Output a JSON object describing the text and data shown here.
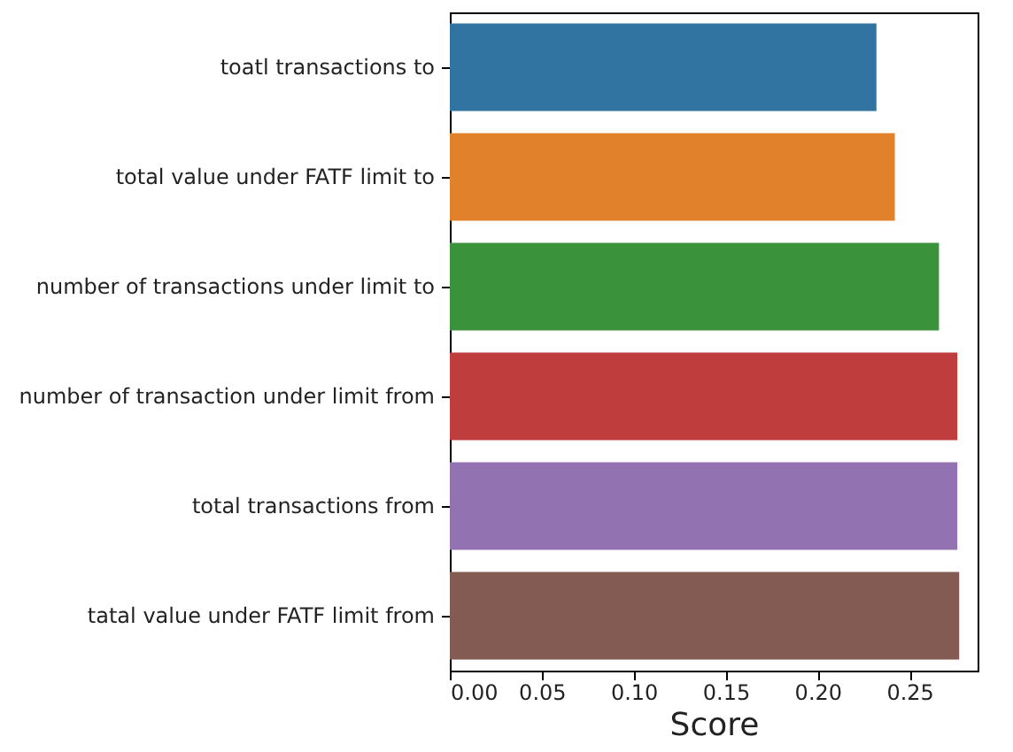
{
  "chart_data": {
    "type": "bar",
    "orientation": "horizontal",
    "xlabel": "Score",
    "categories": [
      "toatl transactions to",
      "total value under FATF limit to",
      "number of transactions under limit to",
      "number of transaction under limit from",
      "total transactions from",
      "tatal value under FATF limit from"
    ],
    "values": [
      0.232,
      0.242,
      0.266,
      0.276,
      0.276,
      0.277
    ],
    "colors": [
      "#3274a1",
      "#e1812c",
      "#3a923a",
      "#c03d3e",
      "#9372b2",
      "#845b53"
    ],
    "xlim": [
      0,
      0.287
    ],
    "xticks": [
      {
        "value": 0,
        "label": "0.00"
      },
      {
        "value": 0.05,
        "label": "0.05"
      },
      {
        "value": 0.1,
        "label": "0.10"
      },
      {
        "value": 0.15,
        "label": "0.15"
      },
      {
        "value": 0.2,
        "label": "0.20"
      },
      {
        "value": 0.25,
        "label": "0.25"
      }
    ],
    "grid": false
  }
}
